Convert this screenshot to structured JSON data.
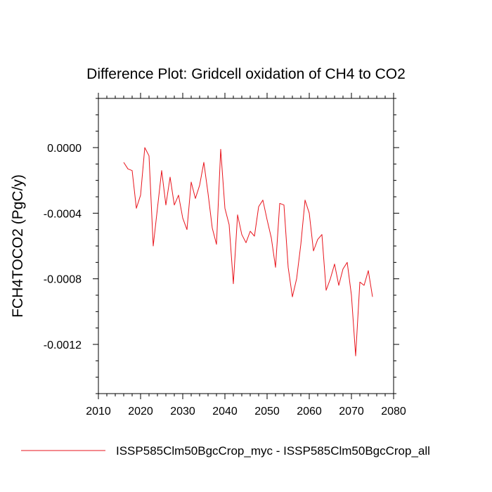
{
  "chart_data": {
    "type": "line",
    "title": "Difference Plot: Gridcell oxidation of CH4 to CO2",
    "xlabel": "",
    "ylabel": "FCH4TOCO2  (PgC/y)",
    "xlim": [
      2010,
      2080
    ],
    "ylim": [
      -0.0015,
      0.0003
    ],
    "xticks": [
      2010,
      2020,
      2030,
      2040,
      2050,
      2060,
      2070,
      2080
    ],
    "xtick_labels": [
      "2010",
      "2020",
      "2030",
      "2040",
      "2050",
      "2060",
      "2070",
      "2080"
    ],
    "yticks": [
      0.0,
      -0.0004,
      -0.0008,
      -0.0012
    ],
    "ytick_labels": [
      "0.0000",
      "-0.0004",
      "-0.0008",
      "-0.0012"
    ],
    "grid": false,
    "legend_position": "bottom",
    "series": [
      {
        "name": "ISSP585Clm50BgcCrop_myc - ISSP585Clm50BgcCrop_all",
        "color": "#e8141c",
        "x": [
          2016,
          2017,
          2018,
          2019,
          2020,
          2021,
          2022,
          2023,
          2024,
          2025,
          2026,
          2027,
          2028,
          2029,
          2030,
          2031,
          2032,
          2033,
          2034,
          2035,
          2036,
          2037,
          2038,
          2039,
          2040,
          2041,
          2042,
          2043,
          2044,
          2045,
          2046,
          2047,
          2048,
          2049,
          2050,
          2051,
          2052,
          2053,
          2054,
          2055,
          2056,
          2057,
          2058,
          2059,
          2060,
          2061,
          2062,
          2063,
          2064,
          2065,
          2066,
          2067,
          2068,
          2069,
          2070,
          2071,
          2072,
          2073,
          2074,
          2075
        ],
        "y": [
          -9e-05,
          -0.00013,
          -0.00014,
          -0.00037,
          -0.00029,
          0.0,
          -5e-05,
          -0.0006,
          -0.00037,
          -0.00014,
          -0.00035,
          -0.00018,
          -0.00035,
          -0.00029,
          -0.00043,
          -0.0005,
          -0.00021,
          -0.00031,
          -0.00023,
          -9e-05,
          -0.00028,
          -0.00049,
          -0.00059,
          -1e-05,
          -0.00037,
          -0.00047,
          -0.00083,
          -0.00041,
          -0.00053,
          -0.00058,
          -0.00051,
          -0.00054,
          -0.00036,
          -0.00032,
          -0.00044,
          -0.00055,
          -0.00073,
          -0.00034,
          -0.00035,
          -0.00073,
          -0.00091,
          -0.0008,
          -0.00059,
          -0.00032,
          -0.0004,
          -0.00063,
          -0.00056,
          -0.00053,
          -0.00087,
          -0.0008,
          -0.00071,
          -0.00084,
          -0.00074,
          -0.0007,
          -0.0009,
          -0.00127,
          -0.00082,
          -0.00084,
          -0.00075,
          -0.00091
        ]
      }
    ]
  }
}
